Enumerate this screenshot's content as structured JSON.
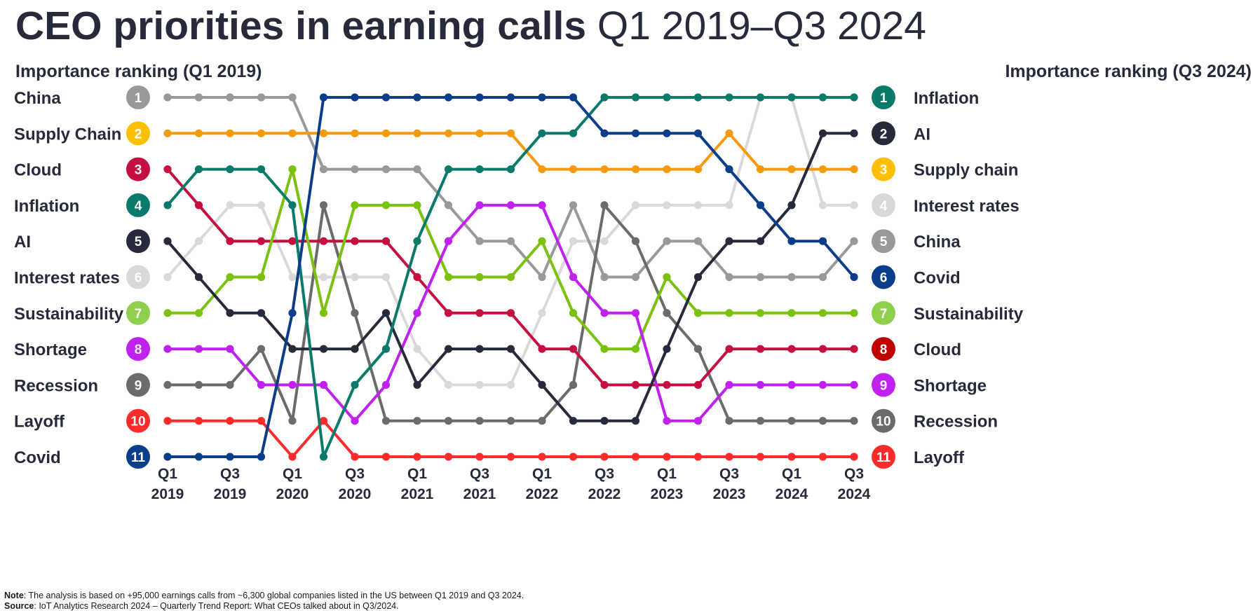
{
  "title": {
    "bold": "CEO priorities in earning calls",
    "light": "Q1 2019–Q3 2024"
  },
  "left_header": "Importance ranking (Q1 2019)",
  "right_header": "Importance ranking (Q3 2024)",
  "note": {
    "label": "Note",
    "text": ": The analysis is based on +95,000 earnings calls from ~6,300 global companies listed in the US between Q1 2019 and Q3 2024."
  },
  "source": {
    "label": "Source",
    "text": ": IoT Analytics Research 2024 – Quarterly Trend Report: What CEOs talked about in Q3/2024."
  },
  "chart_data": {
    "type": "line",
    "subtype": "bump",
    "x": [
      "Q1 2019",
      "Q2 2019",
      "Q3 2019",
      "Q4 2019",
      "Q1 2020",
      "Q2 2020",
      "Q3 2020",
      "Q4 2020",
      "Q1 2021",
      "Q2 2021",
      "Q3 2021",
      "Q4 2021",
      "Q1 2022",
      "Q2 2022",
      "Q3 2022",
      "Q4 2022",
      "Q1 2023",
      "Q2 2023",
      "Q3 2023",
      "Q4 2023",
      "Q1 2024",
      "Q2 2024",
      "Q3 2024"
    ],
    "x_tick_labels": [
      [
        "Q1",
        "2019"
      ],
      [
        "Q3",
        "2019"
      ],
      [
        "Q1",
        "2020"
      ],
      [
        "Q3",
        "2020"
      ],
      [
        "Q1",
        "2021"
      ],
      [
        "Q3",
        "2021"
      ],
      [
        "Q1",
        "2022"
      ],
      [
        "Q3",
        "2022"
      ],
      [
        "Q1",
        "2023"
      ],
      [
        "Q3",
        "2023"
      ],
      [
        "Q1",
        "2024"
      ],
      [
        "Q3",
        "2024"
      ]
    ],
    "y_label": "Importance ranking",
    "y_range": [
      1,
      11
    ],
    "y_inverted": true,
    "left_ranking": [
      {
        "rank": "1",
        "label": "China",
        "color": "#999999"
      },
      {
        "rank": "2",
        "label": "Supply Chain",
        "color": "#fcc000"
      },
      {
        "rank": "3",
        "label": "Cloud",
        "color": "#c5103f"
      },
      {
        "rank": "4",
        "label": "Inflation",
        "color": "#0a7a6b"
      },
      {
        "rank": "5",
        "label": "AI",
        "color": "#262a3b"
      },
      {
        "rank": "6",
        "label": "Interest rates",
        "color": "#d9d9d9"
      },
      {
        "rank": "7",
        "label": "Sustainability",
        "color": "#8ed04b"
      },
      {
        "rank": "8",
        "label": "Shortage",
        "color": "#c020f0"
      },
      {
        "rank": "9",
        "label": "Recession",
        "color": "#6b6b6b"
      },
      {
        "rank": "10",
        "label": "Layoff",
        "color": "#ff2a2a"
      },
      {
        "rank": "11",
        "label": "Covid",
        "color": "#0b3d8a"
      }
    ],
    "right_ranking": [
      {
        "rank": "1",
        "label": "Inflation",
        "color": "#0a7a6b"
      },
      {
        "rank": "2",
        "label": "AI",
        "color": "#262a3b"
      },
      {
        "rank": "3",
        "label": "Supply chain",
        "color": "#fcc000"
      },
      {
        "rank": "4",
        "label": "Interest rates",
        "color": "#d9d9d9"
      },
      {
        "rank": "5",
        "label": "China",
        "color": "#999999"
      },
      {
        "rank": "6",
        "label": "Covid",
        "color": "#0b3d8a"
      },
      {
        "rank": "7",
        "label": "Sustainability",
        "color": "#8ed04b"
      },
      {
        "rank": "8",
        "label": "Cloud",
        "color": "#c00000"
      },
      {
        "rank": "9",
        "label": "Shortage",
        "color": "#c020f0"
      },
      {
        "rank": "10",
        "label": "Recession",
        "color": "#6b6b6b"
      },
      {
        "rank": "11",
        "label": "Layoff",
        "color": "#ff2a2a"
      }
    ],
    "series": [
      {
        "name": "Interest rates",
        "color": "#d9d9d9",
        "values": [
          6,
          5,
          4,
          4,
          6,
          6,
          6,
          6,
          8,
          9,
          9,
          9,
          7,
          5,
          5,
          4,
          4,
          4,
          4,
          1,
          1,
          4,
          4
        ]
      },
      {
        "name": "China",
        "color": "#999999",
        "values": [
          1,
          1,
          1,
          1,
          1,
          3,
          3,
          3,
          3,
          4,
          5,
          5,
          6,
          4,
          6,
          6,
          5,
          5,
          6,
          6,
          6,
          6,
          5
        ]
      },
      {
        "name": "Recession",
        "color": "#6b6b6b",
        "values": [
          9,
          9,
          9,
          8,
          10,
          4,
          7,
          10,
          10,
          10,
          10,
          10,
          10,
          9,
          4,
          5,
          7,
          8,
          10,
          10,
          10,
          10,
          10
        ]
      },
      {
        "name": "Layoff",
        "color": "#ff2a2a",
        "values": [
          10,
          10,
          10,
          10,
          11,
          10,
          11,
          11,
          11,
          11,
          11,
          11,
          11,
          11,
          11,
          11,
          11,
          11,
          11,
          11,
          11,
          11,
          11
        ]
      },
      {
        "name": "Supply Chain",
        "color": "#f59a0c",
        "values": [
          2,
          2,
          2,
          2,
          2,
          2,
          2,
          2,
          2,
          2,
          2,
          2,
          3,
          3,
          3,
          3,
          3,
          3,
          2,
          3,
          3,
          3,
          3
        ]
      },
      {
        "name": "Cloud",
        "color": "#c5103f",
        "values": [
          3,
          4,
          5,
          5,
          5,
          5,
          5,
          5,
          6,
          7,
          7,
          7,
          8,
          8,
          9,
          9,
          9,
          9,
          8,
          8,
          8,
          8,
          8
        ]
      },
      {
        "name": "Sustainability",
        "color": "#7bc110",
        "values": [
          7,
          7,
          6,
          6,
          3,
          7,
          4,
          4,
          4,
          6,
          6,
          6,
          5,
          7,
          8,
          8,
          6,
          7,
          7,
          7,
          7,
          7,
          7
        ]
      },
      {
        "name": "Shortage",
        "color": "#c020f0",
        "values": [
          8,
          8,
          8,
          9,
          9,
          9,
          10,
          9,
          7,
          5,
          4,
          4,
          4,
          6,
          7,
          7,
          10,
          10,
          9,
          9,
          9,
          9,
          9
        ]
      },
      {
        "name": "AI",
        "color": "#262a3b",
        "values": [
          5,
          6,
          7,
          7,
          8,
          8,
          8,
          7,
          9,
          8,
          8,
          8,
          9,
          10,
          10,
          10,
          8,
          6,
          5,
          5,
          4,
          2,
          2
        ]
      },
      {
        "name": "Inflation",
        "color": "#0a7a6b",
        "values": [
          4,
          3,
          3,
          3,
          4,
          11,
          9,
          8,
          5,
          3,
          3,
          3,
          2,
          2,
          1,
          1,
          1,
          1,
          1,
          1,
          1,
          1,
          1
        ]
      },
      {
        "name": "Covid",
        "color": "#0b3d8a",
        "values": [
          11,
          11,
          11,
          11,
          7,
          1,
          1,
          1,
          1,
          1,
          1,
          1,
          1,
          1,
          2,
          2,
          2,
          2,
          3,
          4,
          5,
          5,
          6
        ]
      }
    ],
    "colors": {
      "text": "#262a3b"
    }
  }
}
